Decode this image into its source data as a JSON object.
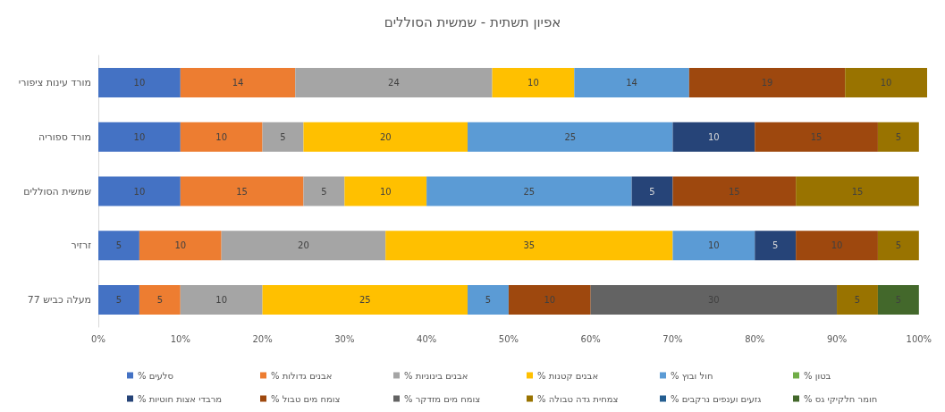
{
  "chart_data": {
    "type": "bar",
    "orientation": "horizontal",
    "stacked": true,
    "title": "אפיון תשתית - שמשית הסוללים",
    "categories": [
      "מורד עינות ציפורי",
      "מורד ספוריה",
      "שמשית הסוללים",
      "זרזיר",
      "מעלה כביש 77"
    ],
    "series": [
      {
        "name": "% סלעים",
        "color": "#4472c4",
        "values": [
          10,
          10,
          10,
          5,
          5
        ]
      },
      {
        "name": "% אבנים גדולות",
        "color": "#ed7d31",
        "values": [
          14,
          10,
          15,
          10,
          5
        ]
      },
      {
        "name": "% אבנים בינוניות",
        "color": "#a5a5a5",
        "values": [
          24,
          5,
          5,
          20,
          10
        ]
      },
      {
        "name": "% אבנים קטנות",
        "color": "#ffc000",
        "values": [
          10,
          20,
          10,
          35,
          25
        ]
      },
      {
        "name": "% חול ובוץ",
        "color": "#5b9bd5",
        "values": [
          14,
          25,
          25,
          10,
          5
        ]
      },
      {
        "name": "% בטון",
        "color": "#70ad47",
        "values": [
          null,
          null,
          null,
          null,
          null
        ]
      },
      {
        "name": "% מרבדי אצות חוטיות",
        "color": "#264478",
        "values": [
          null,
          10,
          5,
          5,
          null
        ]
      },
      {
        "name": "% צומח מים טבול",
        "color": "#9e480e",
        "values": [
          19,
          15,
          15,
          10,
          10
        ]
      },
      {
        "name": "% צומח מים מזדקר",
        "color": "#636363",
        "values": [
          null,
          null,
          null,
          null,
          30
        ]
      },
      {
        "name": "% צמחית גדה טבולה",
        "color": "#997300",
        "values": [
          10,
          5,
          15,
          5,
          5
        ]
      },
      {
        "name": "% גזעים וענפים נרקבים",
        "color": "#255e91",
        "values": [
          null,
          null,
          null,
          null,
          null
        ]
      },
      {
        "name": "% חומר חלקיקי גס",
        "color": "#43682b",
        "values": [
          null,
          null,
          null,
          null,
          5
        ]
      }
    ],
    "xlim": [
      0,
      101
    ],
    "xticks": [
      {
        "value": 0,
        "label": "0%"
      },
      {
        "value": 10,
        "label": "10%"
      },
      {
        "value": 20,
        "label": "20%"
      },
      {
        "value": 30,
        "label": "30%"
      },
      {
        "value": 40,
        "label": "40%"
      },
      {
        "value": 50,
        "label": "50%"
      },
      {
        "value": 60,
        "label": "60%"
      },
      {
        "value": 70,
        "label": "70%"
      },
      {
        "value": 80,
        "label": "80%"
      },
      {
        "value": 90,
        "label": "90%"
      },
      {
        "value": 100,
        "label": "100%"
      }
    ],
    "data_labels": true,
    "grid": false,
    "legend": "bottom"
  }
}
